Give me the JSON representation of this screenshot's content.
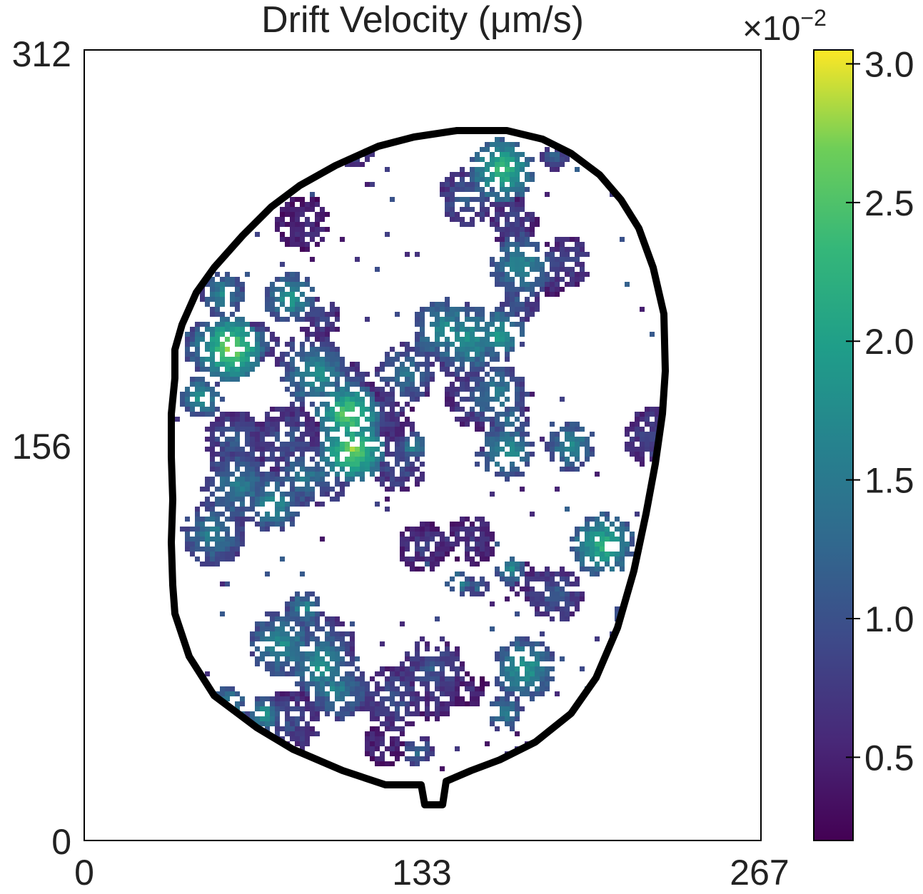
{
  "chart_data": {
    "type": "heatmap",
    "title": "Drift Velocity (μm/s)",
    "xlim": [
      0,
      267
    ],
    "ylim": [
      0,
      312
    ],
    "x_ticks": [
      "0",
      "133",
      "267"
    ],
    "y_ticks": [
      "0",
      "156",
      "312"
    ],
    "colorbar": {
      "colormap": "viridis",
      "range": [
        0.2,
        3.05
      ],
      "ticks": [
        "0.5",
        "1.0",
        "1.5",
        "2.0",
        "2.5",
        "3.0"
      ],
      "tick_values": [
        0.5,
        1.0,
        1.5,
        2.0,
        2.5,
        3.0
      ],
      "multiplier": "×10",
      "exponent": "−2"
    },
    "outline_color": "#000000",
    "grid": false,
    "legend": "none"
  }
}
